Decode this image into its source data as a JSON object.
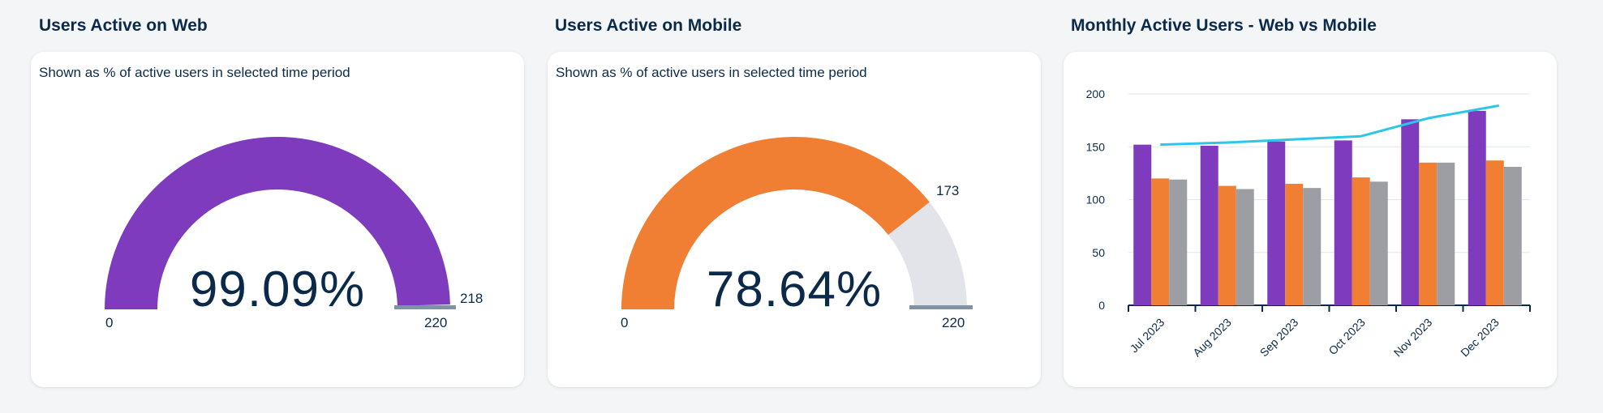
{
  "colors": {
    "web": "#7e3bbe",
    "mobile": "#f07f33",
    "third": "#9d9ea3",
    "line": "#2ec6e8",
    "gauge_track": "#e3e3ea",
    "needle": "#7f92a6",
    "text": "#0b2a4a"
  },
  "web_panel": {
    "title": "Users Active on Web",
    "subtitle": "Shown as % of active users in selected time period",
    "percent_label": "99.09%",
    "min_label": "0",
    "max_label": "220",
    "value_label": "218",
    "value": 218,
    "max": 220
  },
  "mobile_panel": {
    "title": "Users Active on Mobile",
    "subtitle": "Shown as % of active users in selected time period",
    "percent_label": "78.64%",
    "min_label": "0",
    "max_label": "220",
    "value_label": "173",
    "value": 173,
    "max": 220
  },
  "monthly_panel": {
    "title": "Monthly Active Users - Web vs Mobile"
  },
  "chart_data": {
    "type": "bar",
    "title": "Monthly Active Users - Web vs Mobile",
    "categories": [
      "Jul 2023",
      "Aug 2023",
      "Sep 2023",
      "Oct 2023",
      "Nov 2023",
      "Dec 2023"
    ],
    "series": [
      {
        "type": "bar",
        "color": "#7e3bbe",
        "values": [
          152,
          151,
          155,
          156,
          176,
          184
        ]
      },
      {
        "type": "bar",
        "color": "#f07f33",
        "values": [
          120,
          113,
          115,
          121,
          135,
          137
        ]
      },
      {
        "type": "bar",
        "color": "#9d9ea3",
        "values": [
          119,
          110,
          111,
          117,
          135,
          131
        ]
      },
      {
        "type": "line",
        "color": "#2ec6e8",
        "values": [
          152,
          154,
          157,
          160,
          177,
          189
        ]
      }
    ],
    "yticks": [
      0,
      50,
      100,
      150,
      200
    ],
    "ylim": [
      0,
      200
    ],
    "xlabel": "",
    "ylabel": "",
    "grid": true,
    "legend": "none"
  }
}
